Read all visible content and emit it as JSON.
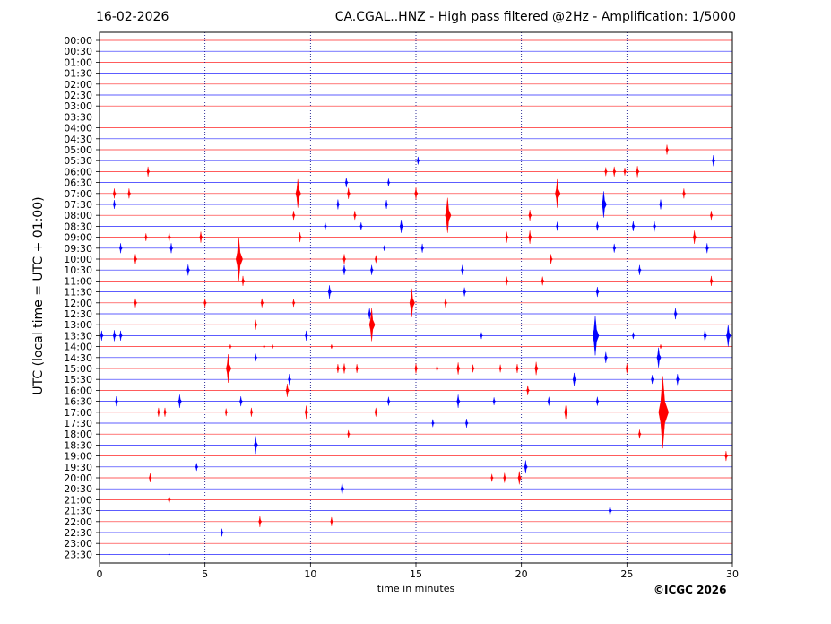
{
  "header": {
    "date": "16-02-2026",
    "title": "CA.CGAL..HNZ - High pass filtered @2Hz - Amplification: 1/5000"
  },
  "copyright": "©ICGC 2026",
  "chart_data": {
    "type": "line",
    "title": "CA.CGAL..HNZ - High pass filtered @2Hz - Amplification: 1/5000",
    "xlabel": "time in minutes",
    "ylabel": "UTC (local time = UTC + 01:00)",
    "xlim": [
      0,
      30
    ],
    "x_ticks": [
      0,
      5,
      10,
      15,
      20,
      25,
      30
    ],
    "grid": "vertical dotted lines at 5, 10, 15, 20, 25 minutes",
    "row_colors": [
      "#ff0000",
      "#0000ff"
    ],
    "rows": [
      "00:00",
      "00:30",
      "01:00",
      "01:30",
      "02:00",
      "02:30",
      "03:00",
      "03:30",
      "04:00",
      "04:30",
      "05:00",
      "05:30",
      "06:00",
      "06:30",
      "07:00",
      "07:30",
      "08:00",
      "08:30",
      "09:00",
      "09:30",
      "10:00",
      "10:30",
      "11:00",
      "11:30",
      "12:00",
      "12:30",
      "13:00",
      "13:30",
      "14:00",
      "14:30",
      "15:00",
      "15:30",
      "16:00",
      "16:30",
      "17:00",
      "17:30",
      "18:00",
      "18:30",
      "19:00",
      "19:30",
      "20:00",
      "20:30",
      "21:00",
      "21:30",
      "22:00",
      "22:30",
      "23:00",
      "23:30"
    ],
    "events": [
      {
        "row": 10,
        "minute": 26.9,
        "amp": 0.45
      },
      {
        "row": 11,
        "minute": 15.1,
        "amp": 0.35
      },
      {
        "row": 11,
        "minute": 29.1,
        "amp": 0.5
      },
      {
        "row": 12,
        "minute": 2.3,
        "amp": 0.45
      },
      {
        "row": 12,
        "minute": 24.0,
        "amp": 0.4
      },
      {
        "row": 12,
        "minute": 24.4,
        "amp": 0.45
      },
      {
        "row": 12,
        "minute": 24.9,
        "amp": 0.35
      },
      {
        "row": 12,
        "minute": 25.5,
        "amp": 0.5
      },
      {
        "row": 13,
        "minute": 11.7,
        "amp": 0.45
      },
      {
        "row": 13,
        "minute": 13.7,
        "amp": 0.35
      },
      {
        "row": 14,
        "minute": 0.7,
        "amp": 0.45
      },
      {
        "row": 14,
        "minute": 1.4,
        "amp": 0.45
      },
      {
        "row": 14,
        "minute": 9.4,
        "amp": 1.3
      },
      {
        "row": 14,
        "minute": 11.8,
        "amp": 0.5
      },
      {
        "row": 14,
        "minute": 15.0,
        "amp": 0.55
      },
      {
        "row": 14,
        "minute": 21.7,
        "amp": 1.3
      },
      {
        "row": 14,
        "minute": 27.7,
        "amp": 0.45
      },
      {
        "row": 15,
        "minute": 0.7,
        "amp": 0.4
      },
      {
        "row": 15,
        "minute": 11.3,
        "amp": 0.45
      },
      {
        "row": 15,
        "minute": 13.6,
        "amp": 0.4
      },
      {
        "row": 15,
        "minute": 23.9,
        "amp": 1.2
      },
      {
        "row": 15,
        "minute": 26.6,
        "amp": 0.45
      },
      {
        "row": 16,
        "minute": 9.2,
        "amp": 0.4
      },
      {
        "row": 16,
        "minute": 12.1,
        "amp": 0.4
      },
      {
        "row": 16,
        "minute": 16.5,
        "amp": 1.6
      },
      {
        "row": 16,
        "minute": 20.4,
        "amp": 0.5
      },
      {
        "row": 16,
        "minute": 29.0,
        "amp": 0.4
      },
      {
        "row": 17,
        "minute": 10.7,
        "amp": 0.35
      },
      {
        "row": 17,
        "minute": 12.4,
        "amp": 0.35
      },
      {
        "row": 17,
        "minute": 14.3,
        "amp": 0.6
      },
      {
        "row": 17,
        "minute": 21.7,
        "amp": 0.4
      },
      {
        "row": 17,
        "minute": 23.6,
        "amp": 0.4
      },
      {
        "row": 17,
        "minute": 25.3,
        "amp": 0.45
      },
      {
        "row": 17,
        "minute": 26.3,
        "amp": 0.5
      },
      {
        "row": 18,
        "minute": 2.2,
        "amp": 0.35
      },
      {
        "row": 18,
        "minute": 3.3,
        "amp": 0.45
      },
      {
        "row": 18,
        "minute": 4.8,
        "amp": 0.5
      },
      {
        "row": 18,
        "minute": 9.5,
        "amp": 0.45
      },
      {
        "row": 18,
        "minute": 19.3,
        "amp": 0.5
      },
      {
        "row": 18,
        "minute": 20.4,
        "amp": 0.6
      },
      {
        "row": 18,
        "minute": 28.2,
        "amp": 0.6
      },
      {
        "row": 19,
        "minute": 1.0,
        "amp": 0.45
      },
      {
        "row": 19,
        "minute": 3.4,
        "amp": 0.45
      },
      {
        "row": 19,
        "minute": 13.5,
        "amp": 0.25
      },
      {
        "row": 19,
        "minute": 15.3,
        "amp": 0.4
      },
      {
        "row": 19,
        "minute": 24.4,
        "amp": 0.4
      },
      {
        "row": 19,
        "minute": 28.8,
        "amp": 0.45
      },
      {
        "row": 20,
        "minute": 1.7,
        "amp": 0.45
      },
      {
        "row": 20,
        "minute": 6.6,
        "amp": 2.0
      },
      {
        "row": 20,
        "minute": 11.6,
        "amp": 0.45
      },
      {
        "row": 20,
        "minute": 13.1,
        "amp": 0.35
      },
      {
        "row": 20,
        "minute": 21.4,
        "amp": 0.45
      },
      {
        "row": 21,
        "minute": 4.2,
        "amp": 0.5
      },
      {
        "row": 21,
        "minute": 11.6,
        "amp": 0.45
      },
      {
        "row": 21,
        "minute": 12.9,
        "amp": 0.45
      },
      {
        "row": 21,
        "minute": 17.2,
        "amp": 0.45
      },
      {
        "row": 21,
        "minute": 25.6,
        "amp": 0.45
      },
      {
        "row": 22,
        "minute": 6.8,
        "amp": 0.45
      },
      {
        "row": 22,
        "minute": 19.3,
        "amp": 0.4
      },
      {
        "row": 22,
        "minute": 21.0,
        "amp": 0.4
      },
      {
        "row": 22,
        "minute": 29.0,
        "amp": 0.45
      },
      {
        "row": 23,
        "minute": 10.9,
        "amp": 0.6
      },
      {
        "row": 23,
        "minute": 17.3,
        "amp": 0.4
      },
      {
        "row": 23,
        "minute": 23.6,
        "amp": 0.45
      },
      {
        "row": 24,
        "minute": 1.7,
        "amp": 0.4
      },
      {
        "row": 24,
        "minute": 5.0,
        "amp": 0.4
      },
      {
        "row": 24,
        "minute": 7.7,
        "amp": 0.4
      },
      {
        "row": 24,
        "minute": 9.2,
        "amp": 0.35
      },
      {
        "row": 24,
        "minute": 14.8,
        "amp": 1.3
      },
      {
        "row": 24,
        "minute": 16.4,
        "amp": 0.4
      },
      {
        "row": 25,
        "minute": 12.8,
        "amp": 0.5
      },
      {
        "row": 25,
        "minute": 27.3,
        "amp": 0.5
      },
      {
        "row": 26,
        "minute": 7.4,
        "amp": 0.45
      },
      {
        "row": 26,
        "minute": 12.9,
        "amp": 1.5
      },
      {
        "row": 27,
        "minute": 0.1,
        "amp": 0.45
      },
      {
        "row": 27,
        "minute": 0.7,
        "amp": 0.5
      },
      {
        "row": 27,
        "minute": 1.0,
        "amp": 0.45
      },
      {
        "row": 27,
        "minute": 9.8,
        "amp": 0.45
      },
      {
        "row": 27,
        "minute": 18.1,
        "amp": 0.3
      },
      {
        "row": 27,
        "minute": 23.5,
        "amp": 1.8
      },
      {
        "row": 27,
        "minute": 25.3,
        "amp": 0.3
      },
      {
        "row": 27,
        "minute": 28.7,
        "amp": 0.6
      },
      {
        "row": 27,
        "minute": 29.8,
        "amp": 1.0
      },
      {
        "row": 28,
        "minute": 6.2,
        "amp": 0.2
      },
      {
        "row": 28,
        "minute": 7.8,
        "amp": 0.2
      },
      {
        "row": 28,
        "minute": 8.2,
        "amp": 0.2
      },
      {
        "row": 28,
        "minute": 11.0,
        "amp": 0.2
      },
      {
        "row": 28,
        "minute": 26.6,
        "amp": 0.2
      },
      {
        "row": 29,
        "minute": 7.4,
        "amp": 0.35
      },
      {
        "row": 29,
        "minute": 24.0,
        "amp": 0.5
      },
      {
        "row": 29,
        "minute": 26.5,
        "amp": 0.9
      },
      {
        "row": 30,
        "minute": 6.1,
        "amp": 1.3
      },
      {
        "row": 30,
        "minute": 11.3,
        "amp": 0.4
      },
      {
        "row": 30,
        "minute": 11.6,
        "amp": 0.45
      },
      {
        "row": 30,
        "minute": 12.2,
        "amp": 0.4
      },
      {
        "row": 30,
        "minute": 15.0,
        "amp": 0.45
      },
      {
        "row": 30,
        "minute": 16.0,
        "amp": 0.3
      },
      {
        "row": 30,
        "minute": 17.0,
        "amp": 0.55
      },
      {
        "row": 30,
        "minute": 17.7,
        "amp": 0.35
      },
      {
        "row": 30,
        "minute": 19.0,
        "amp": 0.35
      },
      {
        "row": 30,
        "minute": 19.8,
        "amp": 0.4
      },
      {
        "row": 30,
        "minute": 20.7,
        "amp": 0.6
      },
      {
        "row": 30,
        "minute": 25.0,
        "amp": 0.45
      },
      {
        "row": 31,
        "minute": 9.0,
        "amp": 0.5
      },
      {
        "row": 31,
        "minute": 22.5,
        "amp": 0.6
      },
      {
        "row": 31,
        "minute": 26.2,
        "amp": 0.4
      },
      {
        "row": 31,
        "minute": 27.4,
        "amp": 0.5
      },
      {
        "row": 32,
        "minute": 8.9,
        "amp": 0.6
      },
      {
        "row": 32,
        "minute": 20.3,
        "amp": 0.45
      },
      {
        "row": 33,
        "minute": 0.8,
        "amp": 0.45
      },
      {
        "row": 33,
        "minute": 3.8,
        "amp": 0.6
      },
      {
        "row": 33,
        "minute": 6.7,
        "amp": 0.45
      },
      {
        "row": 33,
        "minute": 13.7,
        "amp": 0.4
      },
      {
        "row": 33,
        "minute": 17.0,
        "amp": 0.6
      },
      {
        "row": 33,
        "minute": 18.7,
        "amp": 0.35
      },
      {
        "row": 33,
        "minute": 21.3,
        "amp": 0.4
      },
      {
        "row": 33,
        "minute": 23.6,
        "amp": 0.4
      },
      {
        "row": 34,
        "minute": 2.8,
        "amp": 0.4
      },
      {
        "row": 34,
        "minute": 3.1,
        "amp": 0.4
      },
      {
        "row": 34,
        "minute": 6.0,
        "amp": 0.35
      },
      {
        "row": 34,
        "minute": 7.2,
        "amp": 0.4
      },
      {
        "row": 34,
        "minute": 9.8,
        "amp": 0.6
      },
      {
        "row": 34,
        "minute": 13.1,
        "amp": 0.4
      },
      {
        "row": 34,
        "minute": 22.1,
        "amp": 0.6
      },
      {
        "row": 34,
        "minute": 26.7,
        "amp": 3.3
      },
      {
        "row": 35,
        "minute": 15.8,
        "amp": 0.35
      },
      {
        "row": 35,
        "minute": 17.4,
        "amp": 0.4
      },
      {
        "row": 36,
        "minute": 11.8,
        "amp": 0.35
      },
      {
        "row": 36,
        "minute": 25.6,
        "amp": 0.4
      },
      {
        "row": 37,
        "minute": 7.4,
        "amp": 0.8
      },
      {
        "row": 38,
        "minute": 29.7,
        "amp": 0.45
      },
      {
        "row": 39,
        "minute": 4.6,
        "amp": 0.35
      },
      {
        "row": 39,
        "minute": 20.2,
        "amp": 0.6
      },
      {
        "row": 40,
        "minute": 2.4,
        "amp": 0.4
      },
      {
        "row": 40,
        "minute": 18.6,
        "amp": 0.35
      },
      {
        "row": 40,
        "minute": 19.2,
        "amp": 0.45
      },
      {
        "row": 40,
        "minute": 19.9,
        "amp": 0.6
      },
      {
        "row": 41,
        "minute": 11.5,
        "amp": 0.6
      },
      {
        "row": 42,
        "minute": 3.3,
        "amp": 0.35
      },
      {
        "row": 43,
        "minute": 24.2,
        "amp": 0.5
      },
      {
        "row": 44,
        "minute": 7.6,
        "amp": 0.5
      },
      {
        "row": 44,
        "minute": 11.0,
        "amp": 0.4
      },
      {
        "row": 45,
        "minute": 5.8,
        "amp": 0.35
      },
      {
        "row": 47,
        "minute": 3.3,
        "amp": 0.1
      }
    ]
  }
}
